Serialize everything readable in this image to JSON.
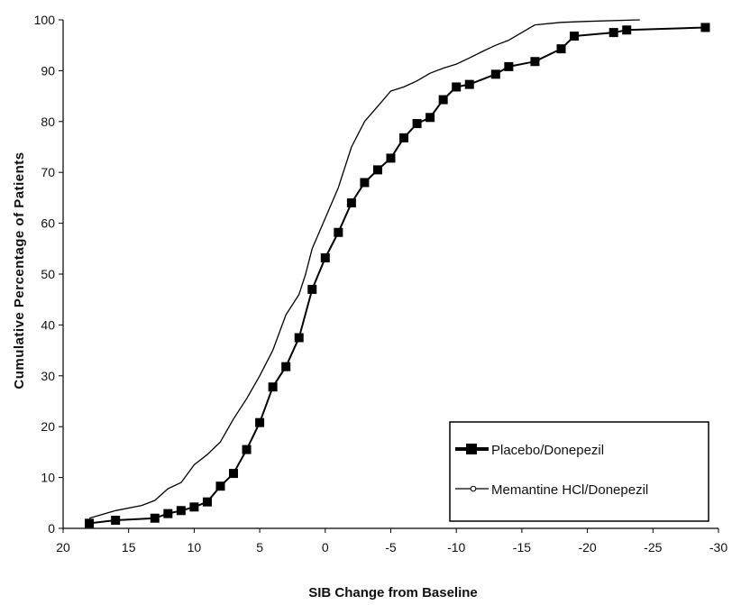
{
  "chart_data": {
    "type": "line",
    "xlabel": "SIB Change from Baseline",
    "ylabel": "Cumulative Percentage of Patients",
    "xlim": [
      20,
      -30
    ],
    "ylim": [
      0,
      100
    ],
    "x_ticks": [
      20,
      15,
      10,
      5,
      0,
      -5,
      -10,
      -15,
      -20,
      -25,
      -30
    ],
    "y_ticks": [
      0,
      10,
      20,
      30,
      40,
      50,
      60,
      70,
      80,
      90,
      100
    ],
    "x_tick_labels": [
      "20",
      "15",
      "10",
      "5",
      "0",
      "-5",
      "-10",
      "-15",
      "-20",
      "-25",
      "-30"
    ],
    "y_tick_labels": [
      "0",
      "10",
      "20",
      "30",
      "40",
      "50",
      "60",
      "70",
      "80",
      "90",
      "100"
    ],
    "legend_position": "bottom-right",
    "grid": false,
    "series": [
      {
        "name": "Placebo/Donepezil",
        "marker": "square",
        "color": "#000000",
        "points": [
          [
            18,
            1
          ],
          [
            16,
            1.6
          ],
          [
            13,
            2
          ],
          [
            12,
            2.9
          ],
          [
            11,
            3.5
          ],
          [
            10,
            4.2
          ],
          [
            9,
            5.2
          ],
          [
            8,
            8.3
          ],
          [
            7,
            10.8
          ],
          [
            6,
            15.5
          ],
          [
            5,
            20.8
          ],
          [
            4,
            27.8
          ],
          [
            3,
            31.8
          ],
          [
            2,
            37.5
          ],
          [
            1,
            47
          ],
          [
            0,
            53.2
          ],
          [
            -1,
            58.2
          ],
          [
            -2,
            64
          ],
          [
            -3,
            68
          ],
          [
            -4,
            70.5
          ],
          [
            -5,
            72.8
          ],
          [
            -6,
            76.8
          ],
          [
            -7,
            79.6
          ],
          [
            -8,
            80.8
          ],
          [
            -9,
            84.3
          ],
          [
            -10,
            86.8
          ],
          [
            -11,
            87.3
          ],
          [
            -13,
            89.3
          ],
          [
            -14,
            90.8
          ],
          [
            -16,
            91.8
          ],
          [
            -18,
            94.3
          ],
          [
            -19,
            96.8
          ],
          [
            -22,
            97.5
          ],
          [
            -23,
            98
          ],
          [
            -29,
            98.5
          ]
        ]
      },
      {
        "name": "Memantine HCl/Donepezil",
        "marker": "none",
        "color": "#000000",
        "points": [
          [
            18,
            2
          ],
          [
            16,
            3.5
          ],
          [
            14,
            4.5
          ],
          [
            13,
            5.5
          ],
          [
            12,
            7.8
          ],
          [
            11,
            9
          ],
          [
            10,
            12.5
          ],
          [
            9,
            14.5
          ],
          [
            8,
            17
          ],
          [
            7,
            21.5
          ],
          [
            6,
            25.5
          ],
          [
            5,
            30
          ],
          [
            4,
            35
          ],
          [
            3,
            42
          ],
          [
            2,
            46
          ],
          [
            1.5,
            50
          ],
          [
            1,
            55
          ],
          [
            0,
            61
          ],
          [
            -1,
            67
          ],
          [
            -2,
            75
          ],
          [
            -3,
            80
          ],
          [
            -4,
            83
          ],
          [
            -5,
            86
          ],
          [
            -6,
            86.8
          ],
          [
            -7,
            88
          ],
          [
            -8,
            89.5
          ],
          [
            -9,
            90.5
          ],
          [
            -10,
            91.3
          ],
          [
            -11,
            92.5
          ],
          [
            -12,
            93.8
          ],
          [
            -13,
            95
          ],
          [
            -14,
            96
          ],
          [
            -15,
            97.5
          ],
          [
            -16,
            99
          ],
          [
            -18,
            99.5
          ],
          [
            -20,
            99.7
          ],
          [
            -24,
            100
          ]
        ]
      }
    ]
  }
}
